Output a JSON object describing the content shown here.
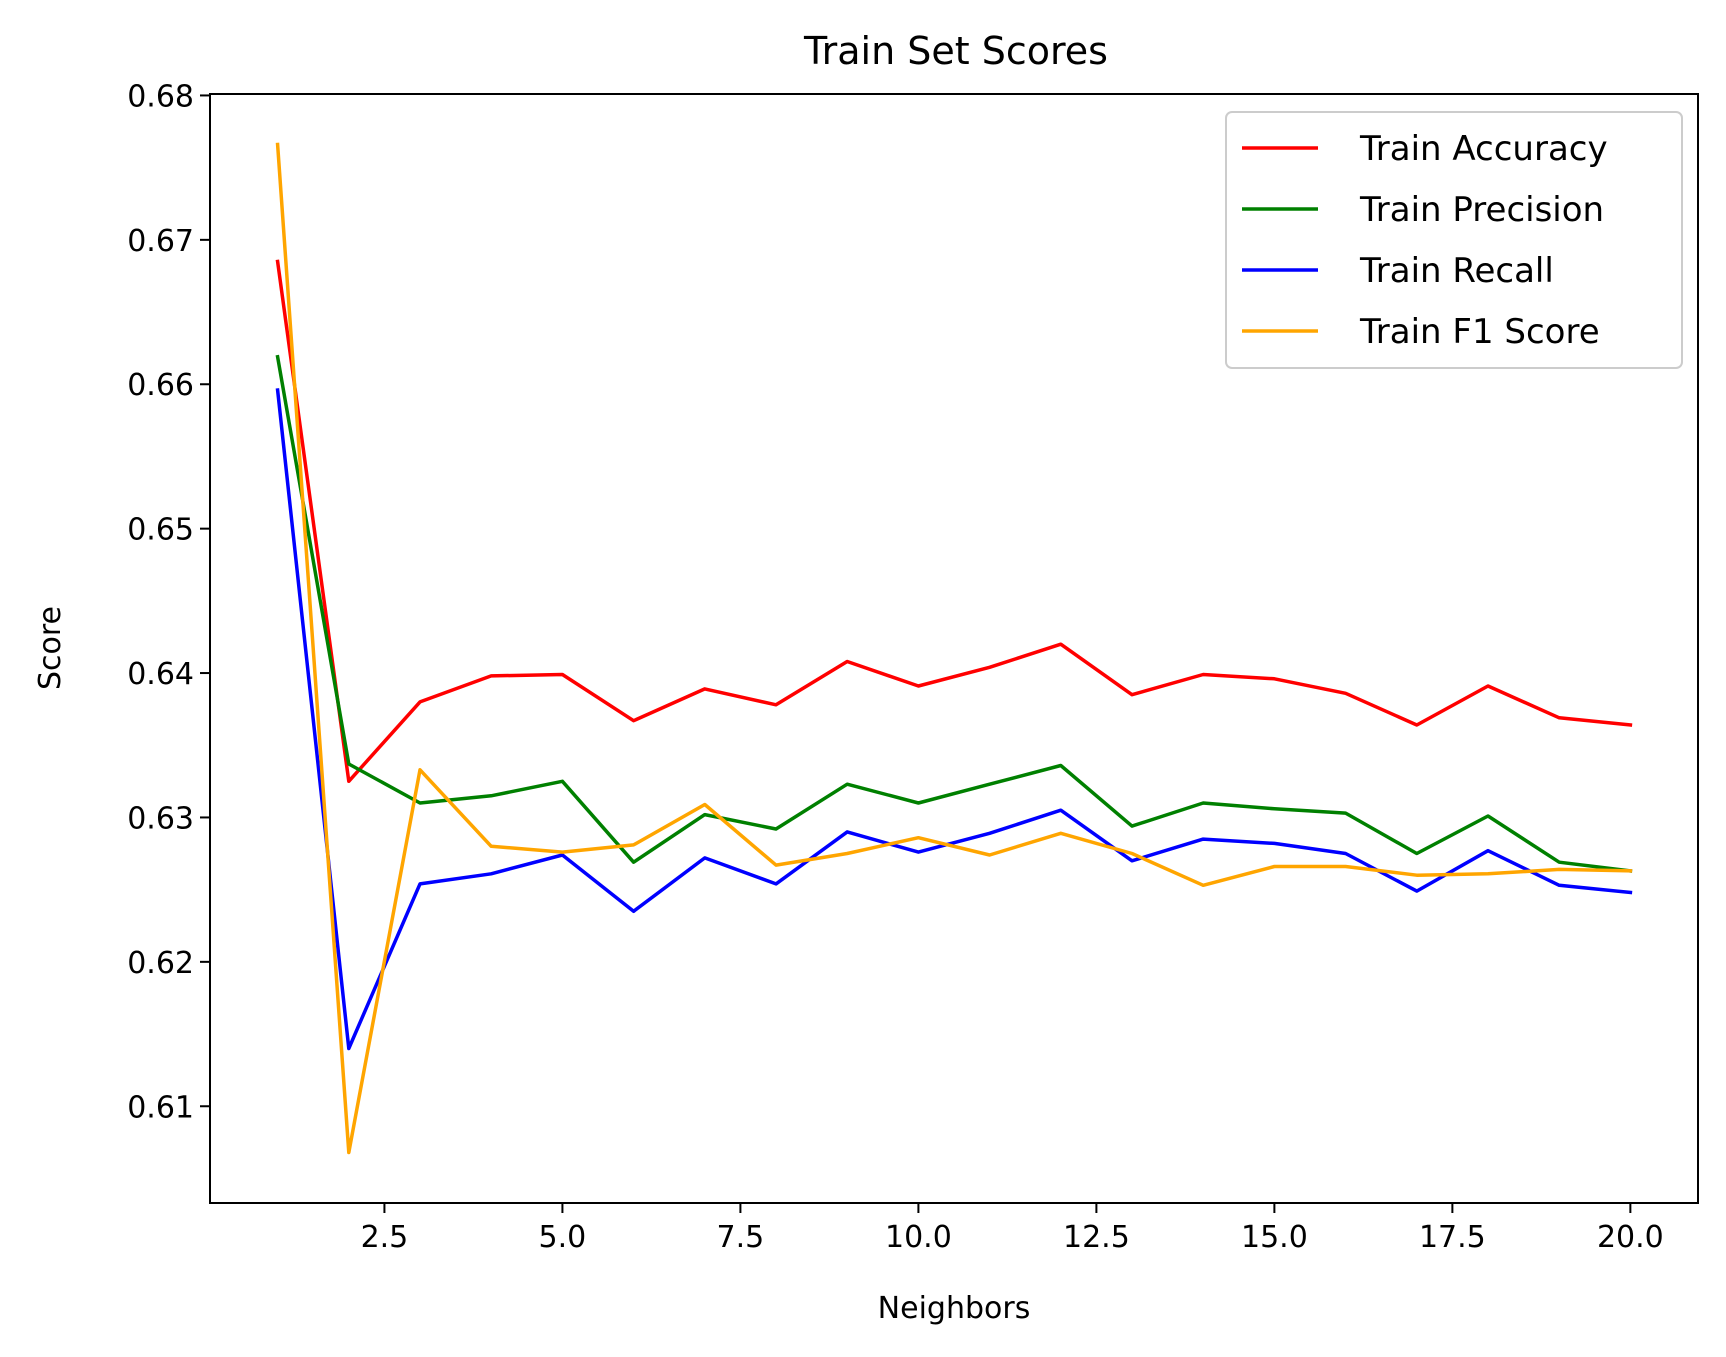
{
  "chart_data": {
    "type": "line",
    "title": "Train Set Scores",
    "xlabel": "Neighbors",
    "ylabel": "Score",
    "xlim": [
      0.05,
      20.95
    ],
    "ylim": [
      0.6033,
      0.6801
    ],
    "xticks": [
      2.5,
      5.0,
      7.5,
      10.0,
      12.5,
      15.0,
      17.5,
      20.0
    ],
    "xtick_labels": [
      "2.5",
      "5.0",
      "7.5",
      "10.0",
      "12.5",
      "15.0",
      "17.5",
      "20.0"
    ],
    "yticks": [
      0.61,
      0.62,
      0.63,
      0.64,
      0.65,
      0.66,
      0.67,
      0.68
    ],
    "ytick_labels": [
      "0.61",
      "0.62",
      "0.63",
      "0.64",
      "0.65",
      "0.66",
      "0.67",
      "0.68"
    ],
    "grid": false,
    "legend_position": "top-right",
    "x": [
      1,
      2,
      3,
      4,
      5,
      6,
      7,
      8,
      9,
      10,
      11,
      12,
      13,
      14,
      15,
      16,
      17,
      18,
      19,
      20
    ],
    "series": [
      {
        "name": "Train Accuracy",
        "color": "#ff0000",
        "values": [
          0.6685,
          0.6325,
          0.638,
          0.6398,
          0.6399,
          0.6367,
          0.6389,
          0.6378,
          0.6408,
          0.6391,
          0.6404,
          0.642,
          0.6385,
          0.6399,
          0.6396,
          0.6386,
          0.6364,
          0.6391,
          0.6369,
          0.6364
        ]
      },
      {
        "name": "Train Precision",
        "color": "#008000",
        "values": [
          0.6619,
          0.6337,
          0.631,
          0.6315,
          0.6325,
          0.6269,
          0.6302,
          0.6292,
          0.6323,
          0.631,
          0.6323,
          0.6336,
          0.6294,
          0.631,
          0.6306,
          0.6303,
          0.6275,
          0.6301,
          0.6269,
          0.6263
        ]
      },
      {
        "name": "Train Recall",
        "color": "#0000ff",
        "values": [
          0.6596,
          0.614,
          0.6254,
          0.6261,
          0.6274,
          0.6235,
          0.6272,
          0.6254,
          0.629,
          0.6276,
          0.6289,
          0.6305,
          0.627,
          0.6285,
          0.6282,
          0.6275,
          0.6249,
          0.6277,
          0.6253,
          0.6248
        ]
      },
      {
        "name": "Train F1 Score",
        "color": "#ffa500",
        "values": [
          0.6766,
          0.6068,
          0.6333,
          0.628,
          0.6276,
          0.6281,
          0.6309,
          0.6267,
          0.6275,
          0.6286,
          0.6274,
          0.6289,
          0.6275,
          0.6253,
          0.6266,
          0.6266,
          0.626,
          0.6261,
          0.6264,
          0.6263
        ]
      }
    ]
  }
}
